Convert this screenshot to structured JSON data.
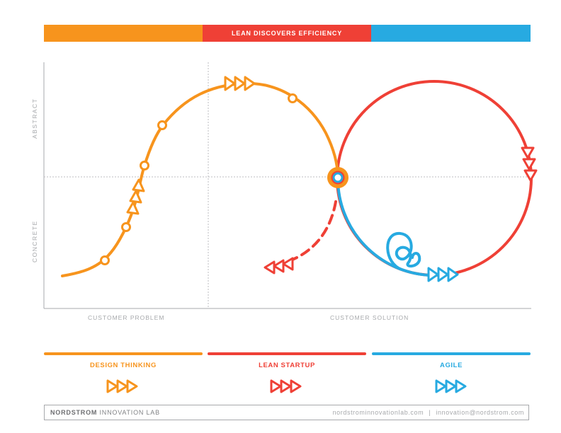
{
  "header": {
    "title": "LEAN DISCOVERS EFFICIENCY"
  },
  "axes": {
    "y_top": "ABSTRACT",
    "y_bottom": "CONCRETE",
    "x_left": "CUSTOMER PROBLEM",
    "x_right": "CUSTOMER SOLUTION"
  },
  "legend": [
    {
      "label": "DESIGN THINKING",
      "color": "#f7941d"
    },
    {
      "label": "LEAN STARTUP",
      "color": "#ef4036"
    },
    {
      "label": "AGILE",
      "color": "#27aae1"
    }
  ],
  "footer": {
    "brand_bold": "NORDSTROM",
    "brand_rest": " INNOVATION LAB",
    "website": "nordstrominnovationlab.com",
    "separator": "|",
    "email": "innovation@nordstrom.com"
  },
  "colors": {
    "orange": "#f7941d",
    "red": "#ef4036",
    "blue": "#27aae1",
    "gray": "#a7a9ac"
  }
}
